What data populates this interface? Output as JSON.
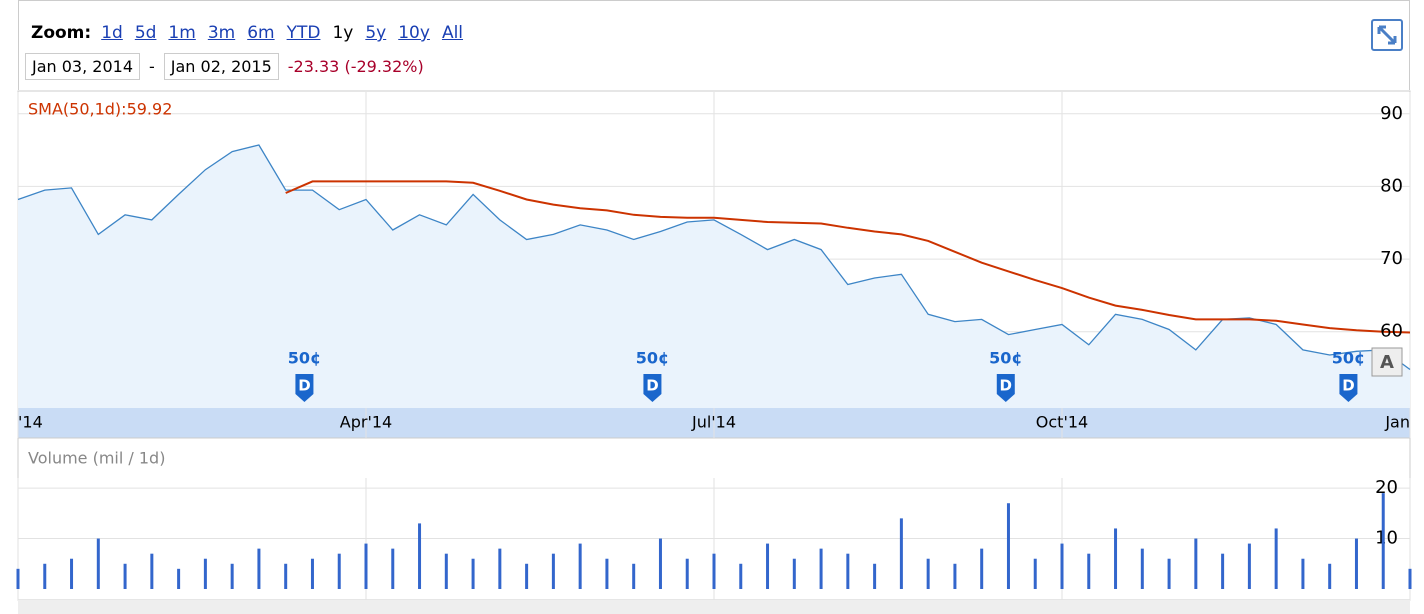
{
  "toolbar": {
    "zoom_label": "Zoom:",
    "zoom_options": [
      "1d",
      "5d",
      "1m",
      "3m",
      "6m",
      "YTD",
      "1y",
      "5y",
      "10y",
      "All"
    ],
    "selected_index": 6,
    "start_date": "Jan 03, 2014",
    "separator": "-",
    "end_date": "Jan 02, 2015",
    "change": "-23.33 (-29.32%)"
  },
  "chart_data": [
    {
      "type": "line",
      "categories": [
        "'14",
        null,
        null,
        null,
        null,
        null,
        null,
        null,
        null,
        null,
        null,
        null,
        null,
        "Apr'14",
        null,
        null,
        null,
        null,
        null,
        null,
        null,
        null,
        null,
        null,
        null,
        null,
        "Jul'14",
        null,
        null,
        null,
        null,
        null,
        null,
        null,
        null,
        null,
        null,
        null,
        null,
        "Oct'14",
        null,
        null,
        null,
        null,
        null,
        null,
        null,
        null,
        null,
        null,
        null,
        null,
        "Jan"
      ],
      "series": [
        {
          "color": "#3d85c6",
          "values": [
            78.2,
            79.5,
            79.8,
            73.4,
            76.1,
            75.4,
            78.9,
            82.3,
            84.8,
            85.7,
            79.5,
            79.5,
            76.8,
            78.2,
            74.0,
            76.1,
            74.7,
            78.9,
            75.4,
            72.7,
            73.4,
            74.7,
            74.0,
            72.7,
            73.8,
            75.1,
            75.4,
            73.4,
            71.3,
            72.7,
            71.3,
            66.5,
            67.4,
            67.9,
            62.4,
            61.4,
            61.7,
            59.6,
            60.3,
            61.0,
            58.2,
            62.4,
            61.7,
            60.3,
            57.5,
            61.7,
            61.9,
            61.0,
            57.5,
            56.8,
            57.3,
            57.5,
            54.8
          ]
        },
        {
          "name": "SMA(50,1d):59.92",
          "color": "#cc3300",
          "values": [
            null,
            null,
            null,
            null,
            null,
            null,
            null,
            null,
            null,
            null,
            79.1,
            80.7,
            80.7,
            80.7,
            80.7,
            80.7,
            80.7,
            80.5,
            79.4,
            78.2,
            77.5,
            77.0,
            76.7,
            76.1,
            75.8,
            75.7,
            75.7,
            75.4,
            75.1,
            75.0,
            74.9,
            74.3,
            73.8,
            73.4,
            72.5,
            71.0,
            69.5,
            68.3,
            67.1,
            66.0,
            64.7,
            63.6,
            63.0,
            62.3,
            61.7,
            61.7,
            61.7,
            61.5,
            61.0,
            60.5,
            60.2,
            60.0,
            59.9
          ]
        }
      ],
      "ylim": [
        49.5,
        93
      ],
      "yticks": [
        60,
        70,
        80,
        90
      ],
      "grid": true,
      "dividends": [
        {
          "label": "50¢",
          "icon": "D",
          "x": 10.7
        },
        {
          "label": "50¢",
          "icon": "D",
          "x": 23.7
        },
        {
          "label": "50¢",
          "icon": "D",
          "x": 36.9
        },
        {
          "label": "50¢",
          "icon": "D",
          "x": 49.7
        }
      ],
      "flags": [
        "A"
      ]
    },
    {
      "type": "bar",
      "title": "Volume (mil / 1d)",
      "color": "#3366cc",
      "values": [
        4,
        5,
        6,
        10,
        5,
        7,
        4,
        6,
        5,
        8,
        5,
        6,
        7,
        9,
        8,
        13,
        7,
        6,
        8,
        5,
        7,
        9,
        6,
        5,
        10,
        6,
        7,
        5,
        9,
        6,
        8,
        7,
        5,
        14,
        6,
        5,
        8,
        17,
        6,
        9,
        7,
        12,
        8,
        6,
        10,
        7,
        9,
        12,
        6,
        5,
        10,
        19,
        4
      ],
      "ylim": [
        0,
        22
      ],
      "yticks": [
        10,
        20
      ],
      "grid": true
    }
  ]
}
